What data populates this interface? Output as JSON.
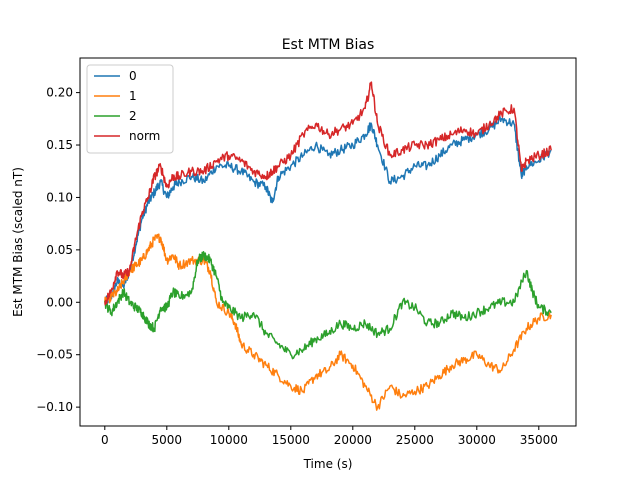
{
  "chart_data": {
    "type": "line",
    "title": "Est MTM Bias",
    "xlabel": "Time (s)",
    "ylabel": "Est MTM Bias (scaled nT)",
    "xlim": [
      -2000,
      38000
    ],
    "ylim": [
      -0.118,
      0.233
    ],
    "xticks": [
      0,
      5000,
      10000,
      15000,
      20000,
      25000,
      30000,
      35000
    ],
    "xtick_labels": [
      "0",
      "5000",
      "10000",
      "15000",
      "20000",
      "25000",
      "30000",
      "35000"
    ],
    "yticks": [
      -0.1,
      -0.05,
      0.0,
      0.05,
      0.1,
      0.15,
      0.2
    ],
    "ytick_labels": [
      "−0.10",
      "−0.05",
      "0.00",
      "0.05",
      "0.10",
      "0.15",
      "0.20"
    ],
    "grid": false,
    "legend_position": "top-left",
    "series": [
      {
        "name": "0",
        "color": "#1f77b4",
        "x": [
          0,
          500,
          1000,
          1500,
          2000,
          2500,
          3000,
          3500,
          4000,
          4500,
          5000,
          5500,
          6000,
          7000,
          8000,
          9000,
          10000,
          11000,
          12000,
          13000,
          13500,
          14000,
          15000,
          16000,
          17000,
          18000,
          19000,
          20000,
          21000,
          21500,
          22000,
          23000,
          24000,
          25000,
          26000,
          27000,
          28000,
          29000,
          30000,
          31000,
          32000,
          33000,
          33600,
          34000,
          35000,
          36000
        ],
        "y": [
          0.0,
          0.005,
          0.02,
          0.015,
          0.03,
          0.055,
          0.08,
          0.095,
          0.105,
          0.115,
          0.1,
          0.11,
          0.115,
          0.12,
          0.115,
          0.13,
          0.13,
          0.125,
          0.115,
          0.11,
          0.095,
          0.12,
          0.13,
          0.14,
          0.15,
          0.14,
          0.145,
          0.15,
          0.16,
          0.17,
          0.15,
          0.115,
          0.12,
          0.13,
          0.13,
          0.14,
          0.15,
          0.155,
          0.16,
          0.165,
          0.175,
          0.17,
          0.12,
          0.13,
          0.135,
          0.145
        ]
      },
      {
        "name": "1",
        "color": "#ff7f0e",
        "x": [
          0,
          500,
          1000,
          1500,
          2000,
          2500,
          3000,
          3500,
          4000,
          4500,
          5000,
          5500,
          6000,
          7000,
          8000,
          8500,
          9000,
          10000,
          10500,
          11000,
          12000,
          13000,
          14000,
          15000,
          16000,
          17000,
          18000,
          19000,
          20000,
          21000,
          22000,
          23000,
          24000,
          25000,
          26000,
          27000,
          28000,
          29000,
          30000,
          31000,
          32000,
          33000,
          34000,
          35000,
          36000
        ],
        "y": [
          0.0,
          0.005,
          0.01,
          0.02,
          0.03,
          0.035,
          0.04,
          0.05,
          0.06,
          0.062,
          0.04,
          0.045,
          0.035,
          0.04,
          0.04,
          0.03,
          0.0,
          -0.01,
          -0.02,
          -0.04,
          -0.05,
          -0.06,
          -0.07,
          -0.08,
          -0.085,
          -0.07,
          -0.065,
          -0.05,
          -0.06,
          -0.08,
          -0.1,
          -0.08,
          -0.09,
          -0.085,
          -0.08,
          -0.07,
          -0.06,
          -0.055,
          -0.05,
          -0.06,
          -0.065,
          -0.045,
          -0.025,
          -0.015,
          -0.012
        ]
      },
      {
        "name": "2",
        "color": "#2ca02c",
        "x": [
          0,
          500,
          1000,
          1500,
          2000,
          2500,
          3000,
          3500,
          4000,
          4500,
          5000,
          5500,
          6000,
          7000,
          7500,
          8000,
          8500,
          9000,
          9500,
          10000,
          11000,
          12000,
          13000,
          14000,
          15000,
          16000,
          17000,
          18000,
          19000,
          20000,
          21000,
          22000,
          23000,
          24000,
          25000,
          26000,
          27000,
          28000,
          29000,
          30000,
          31000,
          32000,
          33000,
          34000,
          34500,
          35000,
          36000
        ],
        "y": [
          0.0,
          -0.01,
          0.0,
          0.01,
          0.0,
          -0.005,
          -0.01,
          -0.02,
          -0.025,
          -0.005,
          -0.005,
          0.01,
          0.005,
          0.01,
          0.04,
          0.045,
          0.04,
          0.025,
          0.0,
          -0.005,
          -0.015,
          -0.01,
          -0.03,
          -0.04,
          -0.05,
          -0.045,
          -0.035,
          -0.03,
          -0.02,
          -0.025,
          -0.02,
          -0.03,
          -0.025,
          0.0,
          -0.005,
          -0.02,
          -0.02,
          -0.01,
          -0.015,
          -0.01,
          -0.005,
          0.0,
          0.0,
          0.03,
          0.01,
          -0.005,
          -0.01
        ]
      },
      {
        "name": "norm",
        "color": "#d62728",
        "x": [
          0,
          500,
          1000,
          1500,
          2000,
          2500,
          3000,
          3500,
          4000,
          4500,
          5000,
          5500,
          6000,
          7000,
          8000,
          9000,
          10000,
          11000,
          12000,
          13000,
          13500,
          14000,
          15000,
          16000,
          17000,
          18000,
          19000,
          20000,
          21000,
          21500,
          22000,
          23000,
          24000,
          25000,
          26000,
          27000,
          28000,
          29000,
          30000,
          31000,
          32000,
          33000,
          33600,
          34000,
          35000,
          36000
        ],
        "y": [
          0.0,
          0.01,
          0.03,
          0.025,
          0.03,
          0.06,
          0.085,
          0.1,
          0.12,
          0.13,
          0.11,
          0.12,
          0.12,
          0.125,
          0.125,
          0.135,
          0.14,
          0.135,
          0.125,
          0.12,
          0.125,
          0.13,
          0.14,
          0.16,
          0.17,
          0.16,
          0.165,
          0.17,
          0.185,
          0.21,
          0.17,
          0.14,
          0.145,
          0.15,
          0.15,
          0.155,
          0.16,
          0.165,
          0.16,
          0.17,
          0.18,
          0.185,
          0.125,
          0.135,
          0.14,
          0.145
        ]
      }
    ]
  }
}
